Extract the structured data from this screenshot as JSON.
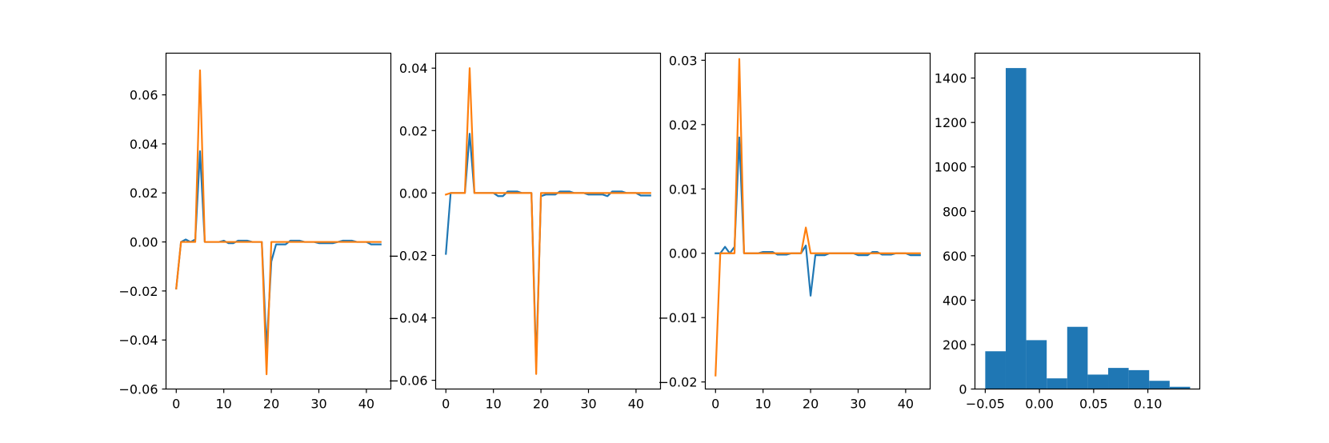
{
  "colors": {
    "series1": "#1f77b4",
    "series2": "#ff7f0e",
    "hist": "#1f77b4"
  },
  "chart_data": [
    {
      "type": "line",
      "xlim": [
        -2.15,
        45.15
      ],
      "ylim": [
        -0.06,
        0.077
      ],
      "xticks": [
        {
          "value": 0,
          "label": "0"
        },
        {
          "value": 10,
          "label": "10"
        },
        {
          "value": 20,
          "label": "20"
        },
        {
          "value": 30,
          "label": "30"
        },
        {
          "value": 40,
          "label": "40"
        }
      ],
      "yticks": [
        {
          "value": -0.06,
          "label": "−0.06"
        },
        {
          "value": -0.04,
          "label": "−0.04"
        },
        {
          "value": -0.02,
          "label": "−0.02"
        },
        {
          "value": 0.0,
          "label": "0.00"
        },
        {
          "value": 0.02,
          "label": "0.02"
        },
        {
          "value": 0.04,
          "label": "0.04"
        },
        {
          "value": 0.06,
          "label": "0.06"
        }
      ],
      "x": [
        0,
        1,
        2,
        3,
        4,
        5,
        6,
        7,
        8,
        9,
        10,
        11,
        12,
        13,
        14,
        15,
        16,
        17,
        18,
        19,
        20,
        21,
        22,
        23,
        24,
        25,
        26,
        27,
        28,
        29,
        30,
        31,
        32,
        33,
        34,
        35,
        36,
        37,
        38,
        39,
        40,
        41,
        42,
        43
      ],
      "series": [
        {
          "color_key": "series1",
          "values": [
            -0.019,
            0.0,
            0.001,
            0.0,
            0.001,
            0.037,
            0.0,
            0.0,
            0.0,
            0.0,
            0.0005,
            -0.0005,
            -0.0005,
            0.0005,
            0.0005,
            0.0005,
            0.0,
            0.0,
            0.0,
            -0.044,
            -0.008,
            -0.001,
            -0.001,
            -0.001,
            0.0005,
            0.0005,
            0.0005,
            0.0,
            0.0,
            0.0,
            -0.0005,
            -0.0005,
            -0.0005,
            -0.0005,
            0.0,
            0.0005,
            0.0005,
            0.0005,
            0.0,
            0.0,
            0.0,
            -0.001,
            -0.001,
            -0.001
          ]
        },
        {
          "color_key": "series2",
          "values": [
            -0.019,
            0.0,
            0.0,
            0.0,
            0.0,
            0.07,
            0.0,
            0.0,
            0.0,
            0.0,
            0.0,
            0.0,
            0.0,
            0.0,
            0.0,
            0.0,
            0.0,
            0.0,
            0.0,
            -0.054,
            0.0,
            0.0,
            0.0,
            0.0,
            0.0,
            0.0,
            0.0,
            0.0,
            0.0,
            0.0,
            0.0,
            0.0,
            0.0,
            0.0,
            0.0,
            0.0,
            0.0,
            0.0,
            0.0,
            0.0,
            0.0,
            0.0,
            0.0,
            0.0
          ]
        }
      ]
    },
    {
      "type": "line",
      "xlim": [
        -2.15,
        45.15
      ],
      "ylim": [
        -0.0628,
        0.0448
      ],
      "xticks": [
        {
          "value": 0,
          "label": "0"
        },
        {
          "value": 10,
          "label": "10"
        },
        {
          "value": 20,
          "label": "20"
        },
        {
          "value": 30,
          "label": "30"
        },
        {
          "value": 40,
          "label": "40"
        }
      ],
      "yticks": [
        {
          "value": -0.06,
          "label": "−0.06"
        },
        {
          "value": -0.04,
          "label": "−0.04"
        },
        {
          "value": -0.02,
          "label": "−0.02"
        },
        {
          "value": 0.0,
          "label": "0.00"
        },
        {
          "value": 0.02,
          "label": "0.02"
        },
        {
          "value": 0.04,
          "label": "0.04"
        }
      ],
      "x": [
        0,
        1,
        2,
        3,
        4,
        5,
        6,
        7,
        8,
        9,
        10,
        11,
        12,
        13,
        14,
        15,
        16,
        17,
        18,
        19,
        20,
        21,
        22,
        23,
        24,
        25,
        26,
        27,
        28,
        29,
        30,
        31,
        32,
        33,
        34,
        35,
        36,
        37,
        38,
        39,
        40,
        41,
        42,
        43
      ],
      "series": [
        {
          "color_key": "series1",
          "values": [
            -0.0195,
            0.0,
            0.0,
            0.0,
            0.0,
            0.019,
            0.0,
            0.0,
            0.0,
            0.0,
            0.0,
            -0.001,
            -0.001,
            0.0005,
            0.0005,
            0.0005,
            0.0,
            0.0,
            0.0,
            -0.055,
            -0.001,
            -0.0005,
            -0.0005,
            -0.0005,
            0.0005,
            0.0005,
            0.0005,
            0.0,
            0.0,
            0.0,
            -0.0005,
            -0.0005,
            -0.0005,
            -0.0005,
            -0.001,
            0.0005,
            0.0005,
            0.0005,
            0.0,
            0.0,
            0.0,
            -0.0008,
            -0.0008,
            -0.0008
          ]
        },
        {
          "color_key": "series2",
          "values": [
            -0.0005,
            0.0,
            0.0,
            0.0,
            0.0,
            0.04,
            0.0,
            0.0,
            0.0,
            0.0,
            0.0,
            0.0,
            0.0,
            0.0,
            0.0,
            0.0,
            0.0,
            0.0,
            0.0,
            -0.058,
            0.0,
            0.0,
            0.0,
            0.0,
            0.0,
            0.0,
            0.0,
            0.0,
            0.0,
            0.0,
            0.0,
            0.0,
            0.0,
            0.0,
            0.0,
            0.0,
            0.0,
            0.0,
            0.0,
            0.0,
            0.0,
            0.0,
            0.0,
            0.0
          ]
        }
      ]
    },
    {
      "type": "line",
      "xlim": [
        -2.15,
        45.15
      ],
      "ylim": [
        -0.0211,
        0.0311
      ],
      "xticks": [
        {
          "value": 0,
          "label": "0"
        },
        {
          "value": 10,
          "label": "10"
        },
        {
          "value": 20,
          "label": "20"
        },
        {
          "value": 30,
          "label": "30"
        },
        {
          "value": 40,
          "label": "40"
        }
      ],
      "yticks": [
        {
          "value": -0.02,
          "label": "−0.02"
        },
        {
          "value": -0.01,
          "label": "−0.01"
        },
        {
          "value": 0.0,
          "label": "0.00"
        },
        {
          "value": 0.01,
          "label": "0.01"
        },
        {
          "value": 0.02,
          "label": "0.02"
        },
        {
          "value": 0.03,
          "label": "0.03"
        }
      ],
      "x": [
        0,
        1,
        2,
        3,
        4,
        5,
        6,
        7,
        8,
        9,
        10,
        11,
        12,
        13,
        14,
        15,
        16,
        17,
        18,
        19,
        20,
        21,
        22,
        23,
        24,
        25,
        26,
        27,
        28,
        29,
        30,
        31,
        32,
        33,
        34,
        35,
        36,
        37,
        38,
        39,
        40,
        41,
        42,
        43
      ],
      "series": [
        {
          "color_key": "series1",
          "values": [
            0.0,
            0.0,
            0.001,
            0.0,
            0.001,
            0.018,
            0.0,
            0.0,
            0.0,
            0.0,
            0.0002,
            0.0002,
            0.0002,
            -0.0002,
            -0.0002,
            -0.0002,
            0.0,
            0.0,
            0.0,
            0.0012,
            -0.0066,
            -0.0003,
            -0.0003,
            -0.0003,
            0.0,
            0.0,
            0.0,
            0.0,
            0.0,
            0.0,
            -0.0003,
            -0.0003,
            -0.0003,
            0.0002,
            0.0002,
            -0.0002,
            -0.0002,
            -0.0002,
            0.0,
            0.0,
            0.0,
            -0.0003,
            -0.0003,
            -0.0003
          ]
        },
        {
          "color_key": "series2",
          "values": [
            -0.019,
            0.0,
            0.0,
            0.0,
            0.0,
            0.0302,
            0.0,
            0.0,
            0.0,
            0.0,
            0.0,
            0.0,
            0.0,
            0.0,
            0.0,
            0.0,
            0.0,
            0.0,
            0.0,
            0.004,
            0.0,
            0.0,
            0.0,
            0.0,
            0.0,
            0.0,
            0.0,
            0.0,
            0.0,
            0.0,
            0.0,
            0.0,
            0.0,
            0.0,
            0.0,
            0.0,
            0.0,
            0.0,
            0.0,
            0.0,
            0.0,
            0.0,
            0.0,
            0.0
          ]
        }
      ]
    },
    {
      "type": "bar",
      "xlim": [
        -0.0595,
        0.1479
      ],
      "ylim": [
        0,
        1512
      ],
      "xticks": [
        {
          "value": -0.05,
          "label": "−0.05"
        },
        {
          "value": 0.0,
          "label": "0.00"
        },
        {
          "value": 0.05,
          "label": "0.05"
        },
        {
          "value": 0.1,
          "label": "0.10"
        }
      ],
      "yticks": [
        {
          "value": 0,
          "label": "0"
        },
        {
          "value": 200,
          "label": "200"
        },
        {
          "value": 400,
          "label": "400"
        },
        {
          "value": 600,
          "label": "600"
        },
        {
          "value": 800,
          "label": "800"
        },
        {
          "value": 1000,
          "label": "1000"
        },
        {
          "value": 1200,
          "label": "1200"
        },
        {
          "value": 1400,
          "label": "1400"
        }
      ],
      "bin_edges": [
        -0.05,
        -0.0311,
        -0.0122,
        0.0067,
        0.0256,
        0.0445,
        0.0634,
        0.0823,
        0.1012,
        0.1201,
        0.139
      ],
      "values": [
        170,
        1445,
        220,
        48,
        280,
        65,
        95,
        85,
        37,
        10
      ]
    }
  ]
}
